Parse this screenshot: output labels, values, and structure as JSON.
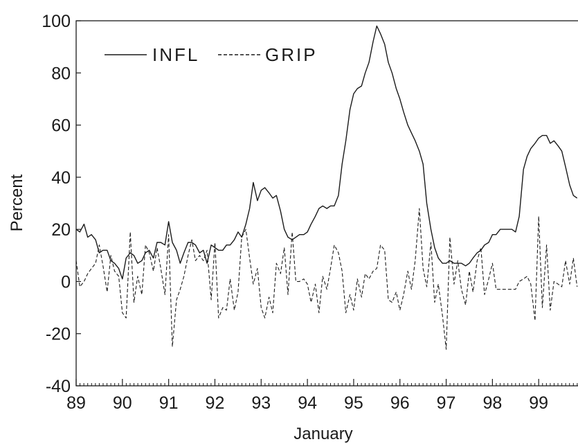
{
  "chart_data": {
    "type": "line",
    "title": "",
    "xlabel": "January",
    "ylabel": "Percent",
    "xlim": [
      1989,
      1999.85
    ],
    "ylim": [
      -40,
      100
    ],
    "x_ticks": [
      1989,
      1990,
      1991,
      1992,
      1993,
      1994,
      1995,
      1996,
      1997,
      1998,
      1999
    ],
    "x_tick_labels": [
      "89",
      "90",
      "91",
      "92",
      "93",
      "94",
      "95",
      "96",
      "97",
      "98",
      "99"
    ],
    "y_ticks": [
      -40,
      -20,
      0,
      20,
      40,
      60,
      80,
      100
    ],
    "y_tick_labels": [
      "-40",
      "-20",
      "0",
      "20",
      "40",
      "60",
      "80",
      "100"
    ],
    "grid": false,
    "legend": {
      "placement": "top-left",
      "entries": [
        "INFL",
        "GRIP"
      ]
    },
    "series": [
      {
        "name": "INFL",
        "style": "solid",
        "points": [
          [
            1989.0,
            20
          ],
          [
            1989.08,
            19
          ],
          [
            1989.17,
            22
          ],
          [
            1989.25,
            17
          ],
          [
            1989.33,
            18
          ],
          [
            1989.42,
            16
          ],
          [
            1989.5,
            11
          ],
          [
            1989.58,
            12
          ],
          [
            1989.67,
            12
          ],
          [
            1989.75,
            8
          ],
          [
            1989.83,
            7
          ],
          [
            1989.92,
            5
          ],
          [
            1990.0,
            1
          ],
          [
            1990.08,
            9
          ],
          [
            1990.17,
            11
          ],
          [
            1990.25,
            10
          ],
          [
            1990.33,
            7
          ],
          [
            1990.42,
            8
          ],
          [
            1990.5,
            11
          ],
          [
            1990.58,
            12
          ],
          [
            1990.67,
            9
          ],
          [
            1990.75,
            15
          ],
          [
            1990.83,
            15
          ],
          [
            1990.92,
            14
          ],
          [
            1991.0,
            23
          ],
          [
            1991.08,
            15
          ],
          [
            1991.17,
            12
          ],
          [
            1991.25,
            7
          ],
          [
            1991.33,
            11
          ],
          [
            1991.42,
            15
          ],
          [
            1991.5,
            15
          ],
          [
            1991.58,
            14
          ],
          [
            1991.67,
            11
          ],
          [
            1991.75,
            12
          ],
          [
            1991.83,
            7
          ],
          [
            1991.92,
            14
          ],
          [
            1992.0,
            13
          ],
          [
            1992.08,
            12
          ],
          [
            1992.17,
            12
          ],
          [
            1992.25,
            14
          ],
          [
            1992.33,
            14
          ],
          [
            1992.42,
            16
          ],
          [
            1992.5,
            19
          ],
          [
            1992.58,
            17
          ],
          [
            1992.67,
            22
          ],
          [
            1992.75,
            28
          ],
          [
            1992.83,
            38
          ],
          [
            1992.92,
            31
          ],
          [
            1993.0,
            35
          ],
          [
            1993.08,
            36
          ],
          [
            1993.17,
            34
          ],
          [
            1993.25,
            32
          ],
          [
            1993.33,
            33
          ],
          [
            1993.42,
            27
          ],
          [
            1993.5,
            20
          ],
          [
            1993.58,
            17
          ],
          [
            1993.67,
            16
          ],
          [
            1993.75,
            17
          ],
          [
            1993.83,
            18
          ],
          [
            1993.92,
            18
          ],
          [
            1994.0,
            19
          ],
          [
            1994.08,
            22
          ],
          [
            1994.17,
            25
          ],
          [
            1994.25,
            28
          ],
          [
            1994.33,
            29
          ],
          [
            1994.42,
            28
          ],
          [
            1994.5,
            29
          ],
          [
            1994.58,
            29
          ],
          [
            1994.67,
            33
          ],
          [
            1994.75,
            45
          ],
          [
            1994.83,
            54
          ],
          [
            1994.92,
            66
          ],
          [
            1995.0,
            72
          ],
          [
            1995.08,
            74
          ],
          [
            1995.17,
            75
          ],
          [
            1995.25,
            80
          ],
          [
            1995.33,
            84
          ],
          [
            1995.42,
            92
          ],
          [
            1995.5,
            98
          ],
          [
            1995.58,
            95
          ],
          [
            1995.67,
            91
          ],
          [
            1995.75,
            84
          ],
          [
            1995.83,
            80
          ],
          [
            1995.92,
            74
          ],
          [
            1996.0,
            70
          ],
          [
            1996.08,
            65
          ],
          [
            1996.17,
            60
          ],
          [
            1996.25,
            57
          ],
          [
            1996.33,
            54
          ],
          [
            1996.42,
            50
          ],
          [
            1996.5,
            45
          ],
          [
            1996.58,
            30
          ],
          [
            1996.67,
            20
          ],
          [
            1996.75,
            13
          ],
          [
            1996.83,
            9
          ],
          [
            1996.92,
            7
          ],
          [
            1997.0,
            7
          ],
          [
            1997.08,
            8
          ],
          [
            1997.17,
            7
          ],
          [
            1997.25,
            7
          ],
          [
            1997.33,
            7
          ],
          [
            1997.42,
            6
          ],
          [
            1997.5,
            7
          ],
          [
            1997.58,
            9
          ],
          [
            1997.67,
            11
          ],
          [
            1997.75,
            12
          ],
          [
            1997.83,
            14
          ],
          [
            1997.92,
            15
          ],
          [
            1998.0,
            18
          ],
          [
            1998.08,
            18
          ],
          [
            1998.17,
            20
          ],
          [
            1998.25,
            20
          ],
          [
            1998.33,
            20
          ],
          [
            1998.42,
            20
          ],
          [
            1998.5,
            19
          ],
          [
            1998.58,
            25
          ],
          [
            1998.67,
            43
          ],
          [
            1998.75,
            48
          ],
          [
            1998.83,
            51
          ],
          [
            1998.92,
            53
          ],
          [
            1999.0,
            55
          ],
          [
            1999.08,
            56
          ],
          [
            1999.17,
            56
          ],
          [
            1999.25,
            53
          ],
          [
            1999.33,
            54
          ],
          [
            1999.42,
            52
          ],
          [
            1999.5,
            50
          ],
          [
            1999.58,
            44
          ],
          [
            1999.67,
            37
          ],
          [
            1999.75,
            33
          ],
          [
            1999.83,
            32
          ]
        ]
      },
      {
        "name": "GRIP",
        "style": "dashed",
        "points": [
          [
            1989.0,
            8
          ],
          [
            1989.08,
            -2
          ],
          [
            1989.17,
            0
          ],
          [
            1989.25,
            3
          ],
          [
            1989.33,
            5
          ],
          [
            1989.42,
            7
          ],
          [
            1989.5,
            14
          ],
          [
            1989.58,
            6
          ],
          [
            1989.67,
            -4
          ],
          [
            1989.75,
            10
          ],
          [
            1989.83,
            4
          ],
          [
            1989.92,
            2
          ],
          [
            1990.0,
            -12
          ],
          [
            1990.08,
            -14
          ],
          [
            1990.17,
            19
          ],
          [
            1990.25,
            -8
          ],
          [
            1990.33,
            2
          ],
          [
            1990.42,
            -5
          ],
          [
            1990.5,
            14
          ],
          [
            1990.58,
            11
          ],
          [
            1990.67,
            4
          ],
          [
            1990.75,
            13
          ],
          [
            1990.83,
            5
          ],
          [
            1990.92,
            -5
          ],
          [
            1991.0,
            18
          ],
          [
            1991.08,
            -25
          ],
          [
            1991.17,
            -7
          ],
          [
            1991.25,
            -3
          ],
          [
            1991.33,
            2
          ],
          [
            1991.42,
            10
          ],
          [
            1991.5,
            16
          ],
          [
            1991.58,
            8
          ],
          [
            1991.67,
            10
          ],
          [
            1991.75,
            8
          ],
          [
            1991.83,
            12
          ],
          [
            1991.92,
            -7
          ],
          [
            1992.0,
            15
          ],
          [
            1992.08,
            -14
          ],
          [
            1992.17,
            -10
          ],
          [
            1992.25,
            -11
          ],
          [
            1992.33,
            1
          ],
          [
            1992.42,
            -11
          ],
          [
            1992.5,
            -4
          ],
          [
            1992.58,
            17
          ],
          [
            1992.67,
            20
          ],
          [
            1992.75,
            9
          ],
          [
            1992.83,
            -1
          ],
          [
            1992.92,
            5
          ],
          [
            1993.0,
            -10
          ],
          [
            1993.08,
            -14
          ],
          [
            1993.17,
            -6
          ],
          [
            1993.25,
            -12
          ],
          [
            1993.33,
            7
          ],
          [
            1993.42,
            3
          ],
          [
            1993.5,
            13
          ],
          [
            1993.58,
            -5
          ],
          [
            1993.67,
            19
          ],
          [
            1993.75,
            0
          ],
          [
            1993.83,
            0
          ],
          [
            1993.92,
            1
          ],
          [
            1994.0,
            -1
          ],
          [
            1994.08,
            -8
          ],
          [
            1994.17,
            -1
          ],
          [
            1994.25,
            -12
          ],
          [
            1994.33,
            2
          ],
          [
            1994.42,
            -3
          ],
          [
            1994.5,
            5
          ],
          [
            1994.58,
            14
          ],
          [
            1994.67,
            11
          ],
          [
            1994.75,
            4
          ],
          [
            1994.83,
            -12
          ],
          [
            1994.92,
            -5
          ],
          [
            1995.0,
            -11
          ],
          [
            1995.08,
            1
          ],
          [
            1995.17,
            -6
          ],
          [
            1995.25,
            3
          ],
          [
            1995.33,
            1
          ],
          [
            1995.42,
            4
          ],
          [
            1995.5,
            5
          ],
          [
            1995.58,
            14
          ],
          [
            1995.67,
            12
          ],
          [
            1995.75,
            -7
          ],
          [
            1995.83,
            -8
          ],
          [
            1995.92,
            -4
          ],
          [
            1996.0,
            -11
          ],
          [
            1996.08,
            -5
          ],
          [
            1996.17,
            4
          ],
          [
            1996.25,
            -3
          ],
          [
            1996.33,
            8
          ],
          [
            1996.42,
            28
          ],
          [
            1996.5,
            5
          ],
          [
            1996.58,
            -2
          ],
          [
            1996.67,
            15
          ],
          [
            1996.75,
            -8
          ],
          [
            1996.83,
            -1
          ],
          [
            1996.92,
            -13
          ],
          [
            1997.0,
            -26
          ],
          [
            1997.08,
            17
          ],
          [
            1997.17,
            -1
          ],
          [
            1997.25,
            8
          ],
          [
            1997.33,
            -3
          ],
          [
            1997.42,
            -9
          ],
          [
            1997.5,
            4
          ],
          [
            1997.58,
            -4
          ],
          [
            1997.67,
            8
          ],
          [
            1997.75,
            13
          ],
          [
            1997.83,
            -5
          ],
          [
            1997.92,
            1
          ],
          [
            1998.0,
            7
          ],
          [
            1998.08,
            -3
          ],
          [
            1998.17,
            -3
          ],
          [
            1998.25,
            -3
          ],
          [
            1998.33,
            -3
          ],
          [
            1998.42,
            -3
          ],
          [
            1998.5,
            -3
          ],
          [
            1998.58,
            0
          ],
          [
            1998.67,
            1
          ],
          [
            1998.75,
            2
          ],
          [
            1998.83,
            -1
          ],
          [
            1998.92,
            -15
          ],
          [
            1999.0,
            25
          ],
          [
            1999.08,
            -10
          ],
          [
            1999.17,
            14
          ],
          [
            1999.25,
            -11
          ],
          [
            1999.33,
            0
          ],
          [
            1999.42,
            -1
          ],
          [
            1999.5,
            -2
          ],
          [
            1999.58,
            8
          ],
          [
            1999.67,
            -1
          ],
          [
            1999.75,
            9
          ],
          [
            1999.83,
            -2
          ]
        ]
      }
    ]
  }
}
